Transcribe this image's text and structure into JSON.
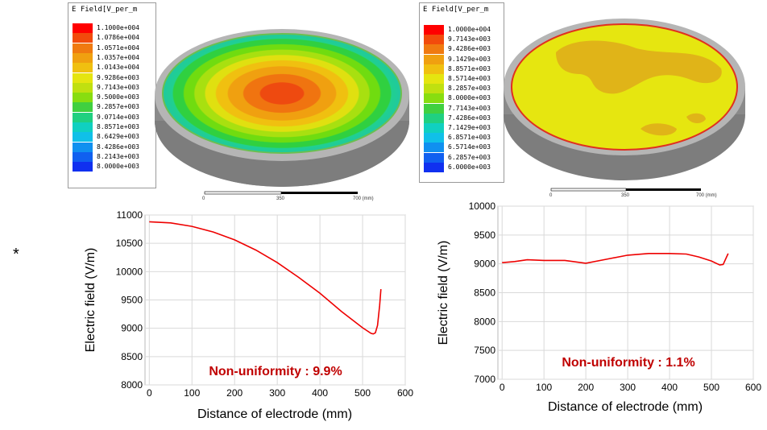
{
  "star": "*",
  "panels": [
    {
      "legend": {
        "title": "E Field[V_per_m",
        "labels": [
          "1.1000e+004",
          "1.0786e+004",
          "1.0571e+004",
          "1.0357e+004",
          "1.0143e+004",
          "9.9286e+003",
          "9.7143e+003",
          "9.5000e+003",
          "9.2857e+003",
          "9.0714e+003",
          "8.8571e+003",
          "8.6429e+003",
          "8.4286e+003",
          "8.2143e+003",
          "8.0000e+003"
        ],
        "colors": [
          "#ff0000",
          "#f24b0c",
          "#f07a10",
          "#f0a010",
          "#f0c010",
          "#e5e510",
          "#c0e010",
          "#88dd10",
          "#40d040",
          "#20d080",
          "#10d0c0",
          "#10c0e8",
          "#1090f0",
          "#1060f0",
          "#1030f0"
        ]
      },
      "scale": {
        "ticks": [
          "0",
          "350",
          "700 (mm)"
        ]
      }
    },
    {
      "legend": {
        "title": "E Field[V_per_m",
        "labels": [
          "1.0000e+004",
          "9.7143e+003",
          "9.4286e+003",
          "9.1429e+003",
          "8.8571e+003",
          "8.5714e+003",
          "8.2857e+003",
          "8.0000e+003",
          "7.7143e+003",
          "7.4286e+003",
          "7.1429e+003",
          "6.8571e+003",
          "6.5714e+003",
          "6.2857e+003",
          "6.0000e+003"
        ],
        "colors": [
          "#ff0000",
          "#f24b0c",
          "#f07a10",
          "#f0a010",
          "#f0c010",
          "#e5e510",
          "#c0e010",
          "#88dd10",
          "#40d040",
          "#20d080",
          "#10d0c0",
          "#10c0e8",
          "#1090f0",
          "#1060f0",
          "#1030f0"
        ]
      },
      "scale": {
        "ticks": [
          "0",
          "350",
          "700 (mm)"
        ]
      }
    }
  ],
  "chart_data": [
    {
      "type": "line",
      "xlabel": "Distance of electrode (mm)",
      "ylabel": "Electric field (V/m)",
      "xlim": [
        -10,
        600
      ],
      "ylim": [
        8000,
        11000
      ],
      "xticks": [
        0,
        100,
        200,
        300,
        400,
        500,
        600
      ],
      "yticks": [
        8000,
        8500,
        9000,
        9500,
        10000,
        10500,
        11000
      ],
      "grid": true,
      "line_color": "#ee0000",
      "annotation": "Non-uniformity : 9.9%",
      "annotation_color": "#c00000",
      "series": [
        {
          "x": [
            0,
            50,
            100,
            150,
            200,
            250,
            300,
            350,
            400,
            450,
            500,
            520,
            525,
            530,
            535,
            540,
            543
          ],
          "y": [
            10880,
            10860,
            10800,
            10700,
            10560,
            10380,
            10160,
            9900,
            9620,
            9300,
            9010,
            8910,
            8900,
            8920,
            9050,
            9400,
            9690
          ]
        }
      ]
    },
    {
      "type": "line",
      "xlabel": "Distance of electrode (mm)",
      "ylabel": "Electric field (V/m)",
      "xlim": [
        -10,
        600
      ],
      "ylim": [
        7000,
        10000
      ],
      "xticks": [
        0,
        100,
        200,
        300,
        400,
        500,
        600
      ],
      "yticks": [
        7000,
        7500,
        8000,
        8500,
        9000,
        9500,
        10000
      ],
      "grid": true,
      "line_color": "#ee0000",
      "annotation": "Non-uniformity : 1.1%",
      "annotation_color": "#c00000",
      "series": [
        {
          "x": [
            0,
            30,
            60,
            100,
            150,
            200,
            250,
            300,
            350,
            400,
            440,
            470,
            500,
            520,
            528,
            535,
            540
          ],
          "y": [
            9020,
            9040,
            9070,
            9060,
            9060,
            9010,
            9080,
            9150,
            9180,
            9180,
            9170,
            9120,
            9050,
            8980,
            8990,
            9100,
            9180
          ]
        }
      ]
    }
  ]
}
